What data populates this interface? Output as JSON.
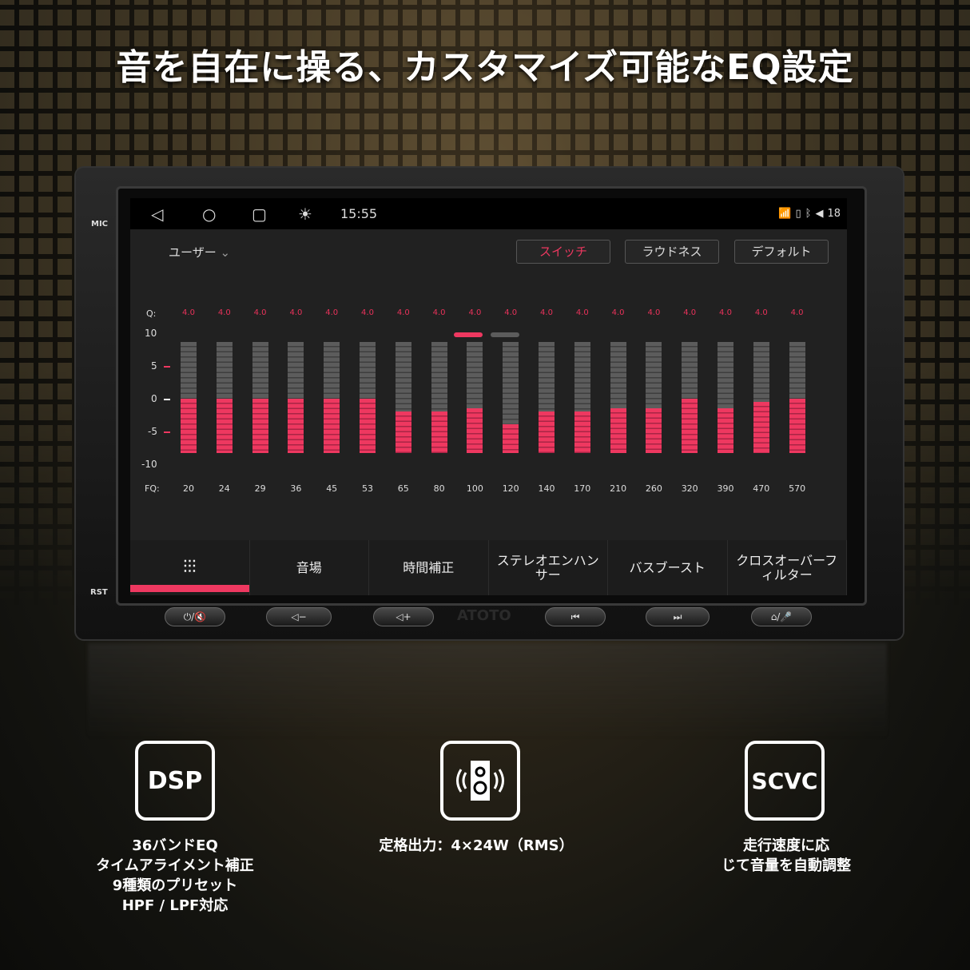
{
  "headline": "音を自在に操る、カスタマイズ可能なEQ設定",
  "device": {
    "mic_label": "MIC",
    "rst_label": "RST",
    "brand": "ATOTO",
    "hw_buttons": [
      "⏻/🔇",
      "◁−",
      "◁+",
      "⏮",
      "⏭",
      "⌂/🎤"
    ]
  },
  "status_bar": {
    "nav_icons": [
      "back-icon",
      "home-icon",
      "recents-icon",
      "brightness-icon"
    ],
    "time": "15:55",
    "volume": "18"
  },
  "eq": {
    "preset": "ユーザー",
    "buttons": [
      "スイッチ",
      "ラウドネス",
      "デフォルト"
    ],
    "q_label": "Q:",
    "fq_label": "FQ:"
  },
  "colors": {
    "accent": "#ee3860",
    "bar_inactive": "#5c5c5c"
  },
  "chart_data": {
    "type": "bar",
    "ylim": [
      -10,
      10
    ],
    "yticks": [
      "10",
      "5",
      "0",
      "-5",
      "-10"
    ],
    "categories": [
      "20",
      "24",
      "29",
      "36",
      "45",
      "53",
      "65",
      "80",
      "100",
      "120",
      "140",
      "170",
      "210",
      "260",
      "320",
      "390",
      "470",
      "570"
    ],
    "q_values": [
      "4.0",
      "4.0",
      "4.0",
      "4.0",
      "4.0",
      "4.0",
      "4.0",
      "4.0",
      "4.0",
      "4.0",
      "4.0",
      "4.0",
      "4.0",
      "4.0",
      "4.0",
      "4.0",
      "4.0",
      "4.0"
    ],
    "values": [
      0,
      0,
      0,
      0,
      0,
      0,
      -2,
      -2,
      -1.5,
      -4,
      -2,
      -2,
      -1.5,
      -1.5,
      0,
      -1.5,
      -0.5,
      0
    ]
  },
  "tabs": [
    "",
    "音場",
    "時間補正",
    "ステレオエンハンサー",
    "バスブースト",
    "クロスオーバーフィルター"
  ],
  "features": [
    {
      "badge": "DSP",
      "lines": [
        "36バンドEQ",
        "タイムアライメント補正",
        "9種類のプリセット",
        "HPF / LPF対応"
      ]
    },
    {
      "badge": "speaker-icon",
      "lines": [
        "定格出力：4×24W（RMS）"
      ]
    },
    {
      "badge": "SCVC",
      "lines": [
        "走行速度に応",
        "じて音量を自動調整"
      ]
    }
  ]
}
